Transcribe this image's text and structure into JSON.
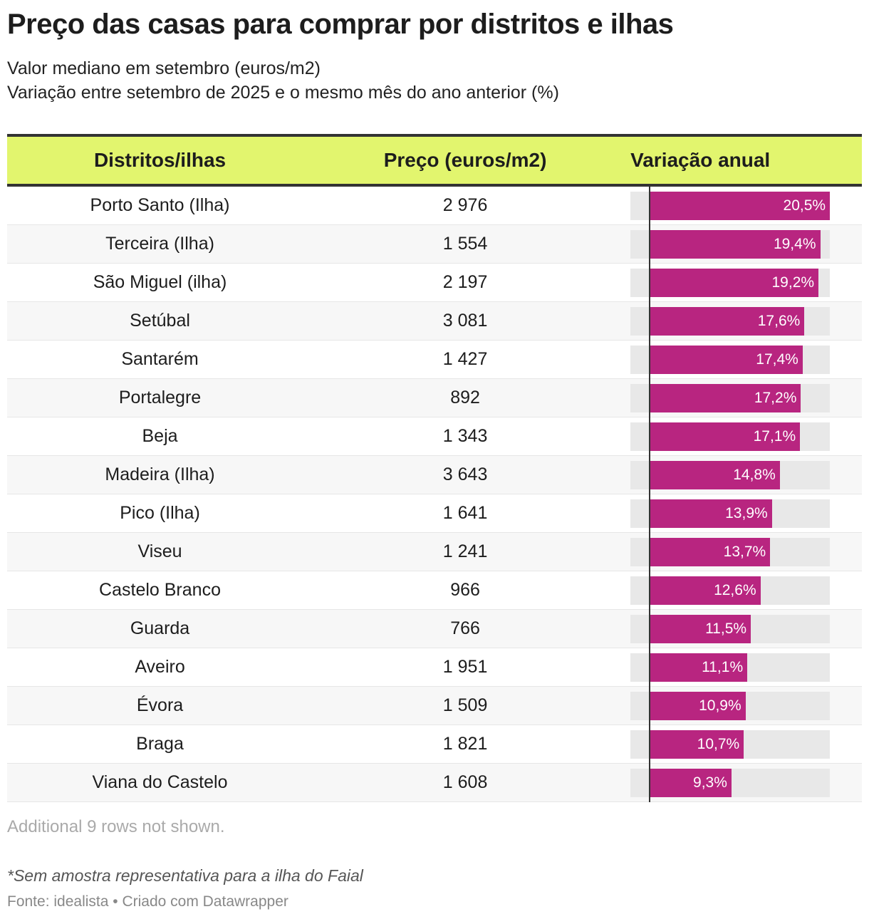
{
  "title": "Preço das casas para comprar por distritos e ilhas",
  "subtitle_lines": [
    "Valor mediano em setembro (euros/m2)",
    "Variação entre setembro de 2025 e o mesmo mês do ano anterior (%)"
  ],
  "more_rows_note": "Additional 9 rows not shown.",
  "footnote": "*Sem amostra representativa para a ilha do Faial",
  "source": "Fonte: idealista • Criado com Datawrapper",
  "colors": {
    "header_bg": "#e2f56e",
    "bar": "#b82580",
    "bar_bg": "#e8e8e8"
  },
  "chart_data": {
    "type": "table",
    "columns": [
      "Distritos/ilhas",
      "Preço (euros/m2)",
      "Variação anual"
    ],
    "bar_column_range": [
      -2.2,
      20.5
    ],
    "rows": [
      {
        "name": "Porto Santo (Ilha)",
        "price": "2 976",
        "change": 20.5,
        "change_label": "20,5%"
      },
      {
        "name": "Terceira (Ilha)",
        "price": "1 554",
        "change": 19.4,
        "change_label": "19,4%"
      },
      {
        "name": "São Miguel (ilha)",
        "price": "2 197",
        "change": 19.2,
        "change_label": "19,2%"
      },
      {
        "name": "Setúbal",
        "price": "3 081",
        "change": 17.6,
        "change_label": "17,6%"
      },
      {
        "name": "Santarém",
        "price": "1 427",
        "change": 17.4,
        "change_label": "17,4%"
      },
      {
        "name": "Portalegre",
        "price": "892",
        "change": 17.2,
        "change_label": "17,2%"
      },
      {
        "name": "Beja",
        "price": "1 343",
        "change": 17.1,
        "change_label": "17,1%"
      },
      {
        "name": "Madeira (Ilha)",
        "price": "3 643",
        "change": 14.8,
        "change_label": "14,8%"
      },
      {
        "name": "Pico (Ilha)",
        "price": "1 641",
        "change": 13.9,
        "change_label": "13,9%"
      },
      {
        "name": "Viseu",
        "price": "1 241",
        "change": 13.7,
        "change_label": "13,7%"
      },
      {
        "name": "Castelo Branco",
        "price": "966",
        "change": 12.6,
        "change_label": "12,6%"
      },
      {
        "name": "Guarda",
        "price": "766",
        "change": 11.5,
        "change_label": "11,5%"
      },
      {
        "name": "Aveiro",
        "price": "1 951",
        "change": 11.1,
        "change_label": "11,1%"
      },
      {
        "name": "Évora",
        "price": "1 509",
        "change": 10.9,
        "change_label": "10,9%"
      },
      {
        "name": "Braga",
        "price": "1 821",
        "change": 10.7,
        "change_label": "10,7%"
      },
      {
        "name": "Viana do Castelo",
        "price": "1 608",
        "change": 9.3,
        "change_label": "9,3%"
      }
    ]
  }
}
